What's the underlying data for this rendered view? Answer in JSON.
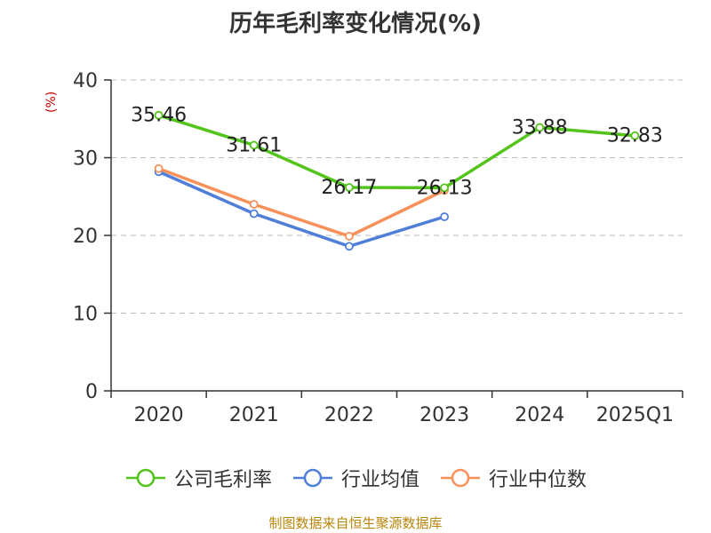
{
  "chart_data": {
    "type": "line",
    "title": "历年毛利率变化情况(%)",
    "ylabel": "(%)",
    "xlabel": "",
    "categories": [
      "2020",
      "2021",
      "2022",
      "2023",
      "2024",
      "2025Q1"
    ],
    "ylim": [
      0,
      40
    ],
    "yticks": [
      "0",
      "10",
      "20",
      "30",
      "40"
    ],
    "grid": true,
    "legend_position": "bottom",
    "series": [
      {
        "name": "公司毛利率",
        "color": "#52c41a",
        "values": [
          35.46,
          31.61,
          26.17,
          26.13,
          33.88,
          32.83
        ],
        "labels": [
          "35.46",
          "31.61",
          "26.17",
          "26.13",
          "33.88",
          "32.83"
        ]
      },
      {
        "name": "行业均值",
        "color": "#4f7fd9",
        "values": [
          28.2,
          22.8,
          18.6,
          22.4,
          null,
          null
        ]
      },
      {
        "name": "行业中位数",
        "color": "#f79159",
        "values": [
          28.6,
          24.0,
          19.9,
          25.8,
          null,
          null
        ]
      }
    ]
  },
  "source": "制图数据来自恒生聚源数据库"
}
